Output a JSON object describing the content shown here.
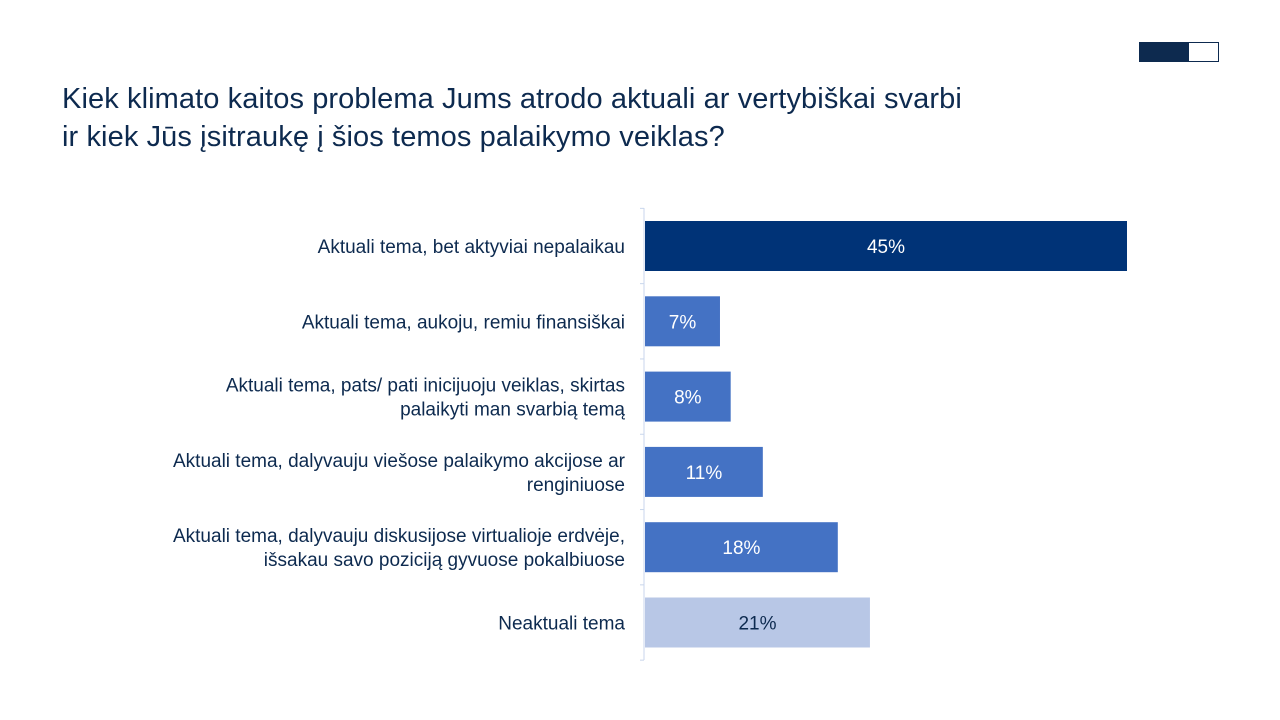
{
  "slide": {
    "title_lines": [
      "Kiek klimato kaitos problema Jums atrodo aktuali ar vertybiškai svarbi",
      "ir kiek Jūs įsitraukę į šios temos palaikymo veiklas?"
    ]
  },
  "chart_data": {
    "type": "bar",
    "orientation": "horizontal",
    "title": "Kiek klimato kaitos problema Jums atrodo aktuali ar vertybiškai svarbi ir kiek Jūs įsitraukę į šios temos palaikymo veiklas?",
    "categories": [
      [
        "Aktuali tema, bet aktyviai nepalaikau"
      ],
      [
        "Aktuali tema, aukoju, remiu finansiškai"
      ],
      [
        "Aktuali tema, pats/ pati inicijuoju veiklas, skirtas",
        "palaikyti man svarbią temą"
      ],
      [
        "Aktuali tema, dalyvauju viešose palaikymo akcijose ar",
        "renginiuose"
      ],
      [
        "Aktuali tema, dalyvauju diskusijose virtualioje erdvėje,",
        "išsakau savo poziciją gyvuose pokalbiuose"
      ],
      [
        "Neaktuali tema"
      ]
    ],
    "values": [
      45,
      7,
      8,
      11,
      18,
      21
    ],
    "value_labels": [
      "45%",
      "7%",
      "8%",
      "11%",
      "18%",
      "21%"
    ],
    "bar_colors": [
      "#003377",
      "#4472c4",
      "#4472c4",
      "#4472c4",
      "#4472c4",
      "#b8c7e6"
    ],
    "label_colors": [
      "#ffffff",
      "#ffffff",
      "#ffffff",
      "#ffffff",
      "#ffffff",
      "#0d2a4f"
    ],
    "xlim": [
      0,
      45
    ],
    "xlabel": "",
    "ylabel": "",
    "grid": false
  }
}
